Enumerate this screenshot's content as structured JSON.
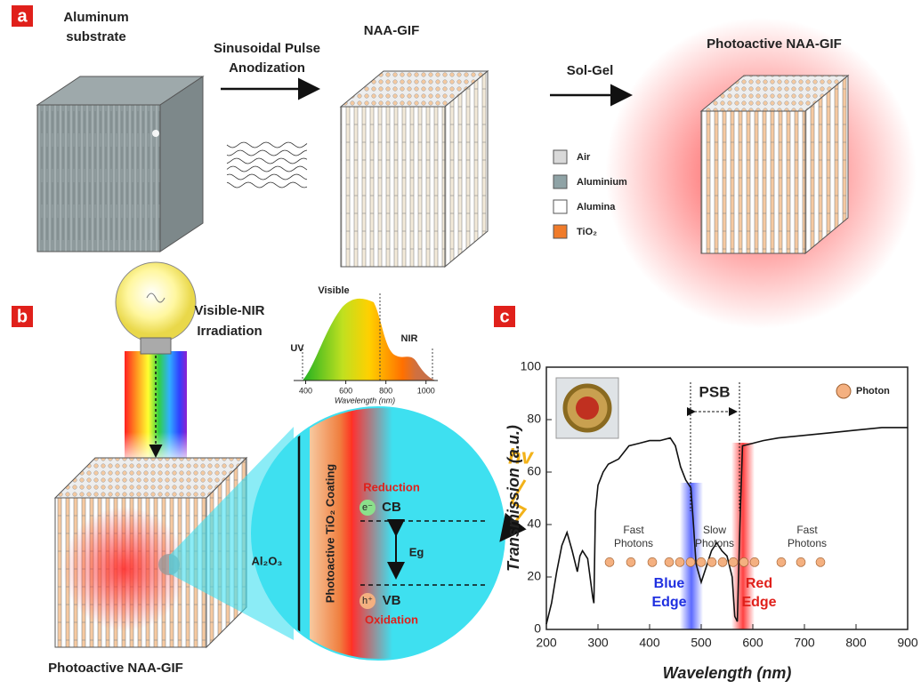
{
  "panel_a": {
    "label": "a",
    "substrate": [
      "Aluminum",
      "substrate"
    ],
    "anodization": [
      "Sinusoidal Pulse",
      "Anodization"
    ],
    "naa_gif": "NAA-GIF",
    "sol_gel": "Sol-Gel",
    "photoactive": "Photoactive NAA-GIF",
    "legend": [
      {
        "name": "Air",
        "color": "#d9d9d9"
      },
      {
        "name": "Aluminium",
        "color": "#8fa3a6"
      },
      {
        "name": "Alumina",
        "color": "#ffffff"
      },
      {
        "name": "TiO₂",
        "color": "#f07b2a"
      }
    ]
  },
  "panel_b": {
    "label": "b",
    "irradiation": [
      "Visible-NIR",
      "Irradiation"
    ],
    "photoactive": "Photoactive NAA-GIF",
    "spectrum": {
      "visible": "Visible",
      "uv": "UV",
      "nir": "NIR",
      "xlim": [
        340,
        1050
      ],
      "xticks": [
        400,
        600,
        800,
        1000
      ],
      "x_label": "Wavelength (nm)"
    },
    "zoom": {
      "al2o3": "Al₂O₃",
      "coating": "Photoactive TiO₂ Coating",
      "reduction": "Reduction",
      "electron": "e⁻",
      "cb": "CB",
      "gap": "Eg",
      "hole": "h⁺",
      "vb": "VB",
      "oxidation": "Oxidation",
      "hv": "hv"
    }
  },
  "panel_c": {
    "label": "c"
  },
  "chart_data": {
    "type": "line",
    "x_label": "Wavelength (nm)",
    "y_label": "Transmission (a.u.)",
    "x": [
      200,
      210,
      220,
      230,
      240,
      250,
      260,
      265,
      270,
      280,
      290,
      292,
      295,
      300,
      310,
      320,
      340,
      360,
      380,
      400,
      420,
      440,
      450,
      460,
      470,
      480,
      485,
      490,
      500,
      510,
      520,
      530,
      540,
      550,
      560,
      565,
      570,
      575,
      580,
      600,
      620,
      650,
      700,
      750,
      800,
      850,
      900
    ],
    "series": [
      {
        "color": "#111111",
        "values": [
          2,
          10,
          22,
          32,
          37,
          30,
          22,
          28,
          30,
          27,
          12,
          10,
          45,
          55,
          60,
          63,
          65,
          70,
          71,
          72,
          72,
          73,
          70,
          62,
          57,
          54,
          40,
          25,
          18,
          24,
          30,
          33,
          30,
          28,
          20,
          5,
          3,
          40,
          70,
          71,
          72,
          73,
          74,
          75,
          76,
          77,
          77
        ]
      }
    ],
    "xlim": [
      200,
      900
    ],
    "ylim": [
      0,
      100
    ],
    "xticks": [
      200,
      300,
      400,
      500,
      600,
      700,
      800,
      900
    ],
    "yticks": [
      0,
      20,
      40,
      60,
      80,
      100
    ],
    "annotations": {
      "psb": "PSB",
      "photon": "Photon",
      "fast_left": [
        "Fast",
        "Photons"
      ],
      "slow": [
        "Slow",
        "Photons"
      ],
      "fast_right": [
        "Fast",
        "Photons"
      ],
      "blue_edge": [
        "Blue",
        "Edge"
      ],
      "red_edge": [
        "Red",
        "Edge"
      ]
    }
  }
}
